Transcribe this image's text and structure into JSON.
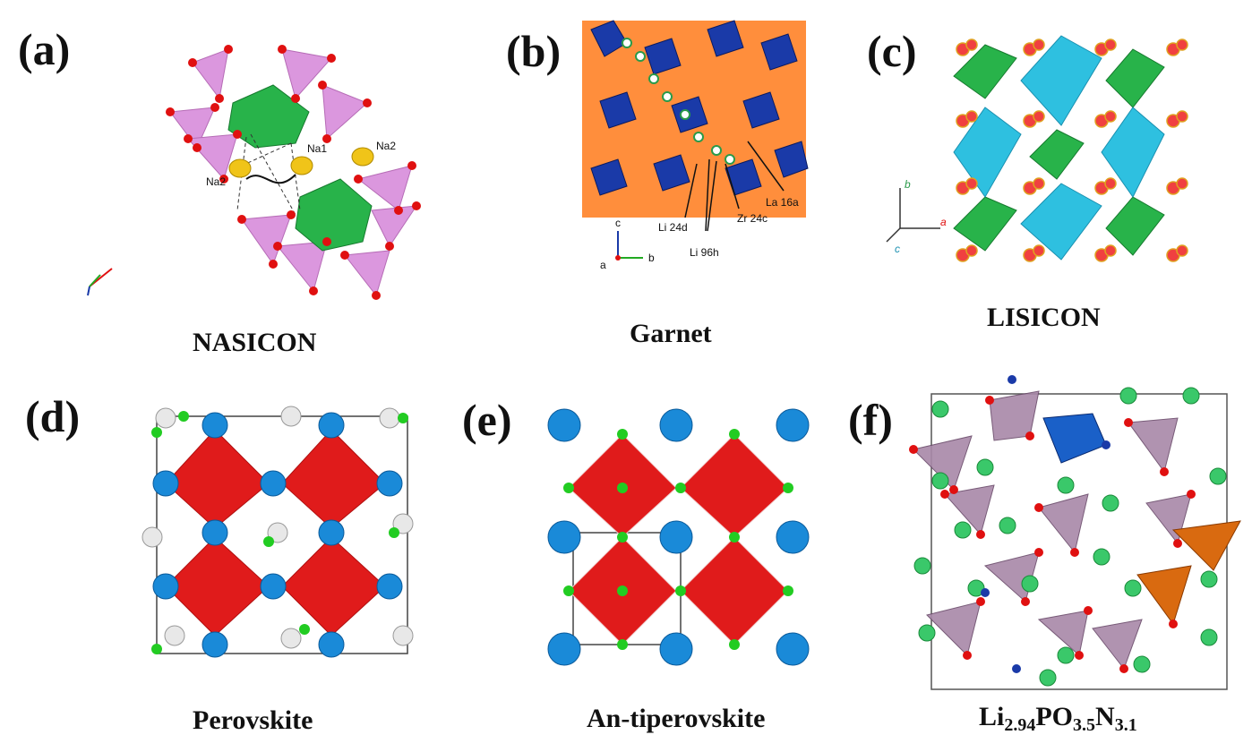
{
  "panels": [
    {
      "letter": "(a)",
      "caption": "NASICON",
      "labels": {
        "na1": "Na1",
        "na2a": "Na2",
        "na2b": "Na2"
      }
    },
    {
      "letter": "(b)",
      "caption": "Garnet",
      "labels": {
        "li24d": "Li 24d",
        "li96h": "Li 96h",
        "zr24c": "Zr 24c",
        "la16a": "La 16a",
        "ax_c": "c",
        "ax_a": "a",
        "ax_b": "b"
      }
    },
    {
      "letter": "(c)",
      "caption": "LISICON",
      "labels": {
        "ax_b": "b",
        "ax_a": "a",
        "ax_c": "c"
      }
    },
    {
      "letter": "(d)",
      "caption": "Perovskite"
    },
    {
      "letter": "(e)",
      "caption": "An-tiperovskite"
    },
    {
      "letter": "(f)",
      "caption_parts": {
        "li": "Li",
        "li_sub": "2.94",
        "po": "PO",
        "o_sub": "3.5",
        "n": "N",
        "n_sub": "3.1"
      }
    }
  ],
  "colors": {
    "tetra_pink": "#d98fdc",
    "octa_green": "#28b34a",
    "sodium_yellow": "#f0c419",
    "oxygen_red": "#e01010",
    "garnet_orange": "#ff7a1a",
    "garnet_blue": "#1a3aa8",
    "lisicon_cyan": "#2ec0e0",
    "perov_red": "#e01b1b",
    "atom_blue": "#1a8ad8",
    "atom_green": "#22cc22",
    "atom_white": "#e8e8e8",
    "lipon_purple": "#a888a8"
  }
}
